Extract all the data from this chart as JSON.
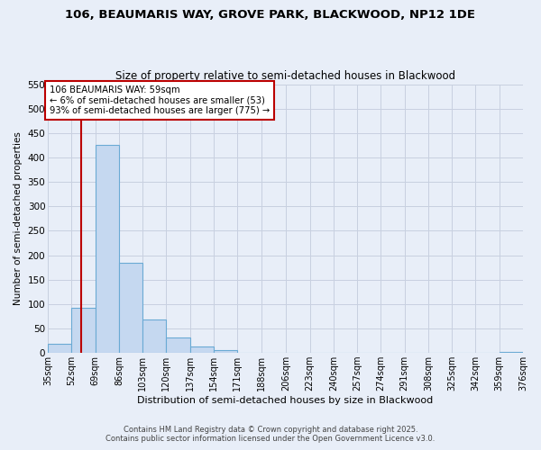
{
  "title1": "106, BEAUMARIS WAY, GROVE PARK, BLACKWOOD, NP12 1DE",
  "title2": "Size of property relative to semi-detached houses in Blackwood",
  "xlabel": "Distribution of semi-detached houses by size in Blackwood",
  "ylabel": "Number of semi-detached properties",
  "bin_edges": [
    35,
    52,
    69,
    86,
    103,
    120,
    137,
    154,
    171,
    188,
    206,
    223,
    240,
    257,
    274,
    291,
    308,
    325,
    342,
    359,
    376
  ],
  "bin_values": [
    18,
    93,
    425,
    184,
    68,
    32,
    13,
    5,
    1,
    0,
    0,
    0,
    0,
    0,
    0,
    0,
    0,
    0,
    0,
    2
  ],
  "bar_color": "#c5d8f0",
  "bar_edge_color": "#6aaad4",
  "vline_x": 59,
  "vline_color": "#bb0000",
  "annotation_text": "106 BEAUMARIS WAY: 59sqm\n← 6% of semi-detached houses are smaller (53)\n93% of semi-detached houses are larger (775) →",
  "annotation_box_color": "#ffffff",
  "annotation_box_edge": "#bb0000",
  "ylim": [
    0,
    550
  ],
  "yticks": [
    0,
    50,
    100,
    150,
    200,
    250,
    300,
    350,
    400,
    450,
    500,
    550
  ],
  "tick_labels": [
    "35sqm",
    "52sqm",
    "69sqm",
    "86sqm",
    "103sqm",
    "120sqm",
    "137sqm",
    "154sqm",
    "171sqm",
    "188sqm",
    "206sqm",
    "223sqm",
    "240sqm",
    "257sqm",
    "274sqm",
    "291sqm",
    "308sqm",
    "325sqm",
    "342sqm",
    "359sqm",
    "376sqm"
  ],
  "footer1": "Contains HM Land Registry data © Crown copyright and database right 2025.",
  "footer2": "Contains public sector information licensed under the Open Government Licence v3.0.",
  "background_color": "#e8eef8",
  "plot_bg_color": "#e8eef8",
  "grid_color": "#c8d0e0"
}
